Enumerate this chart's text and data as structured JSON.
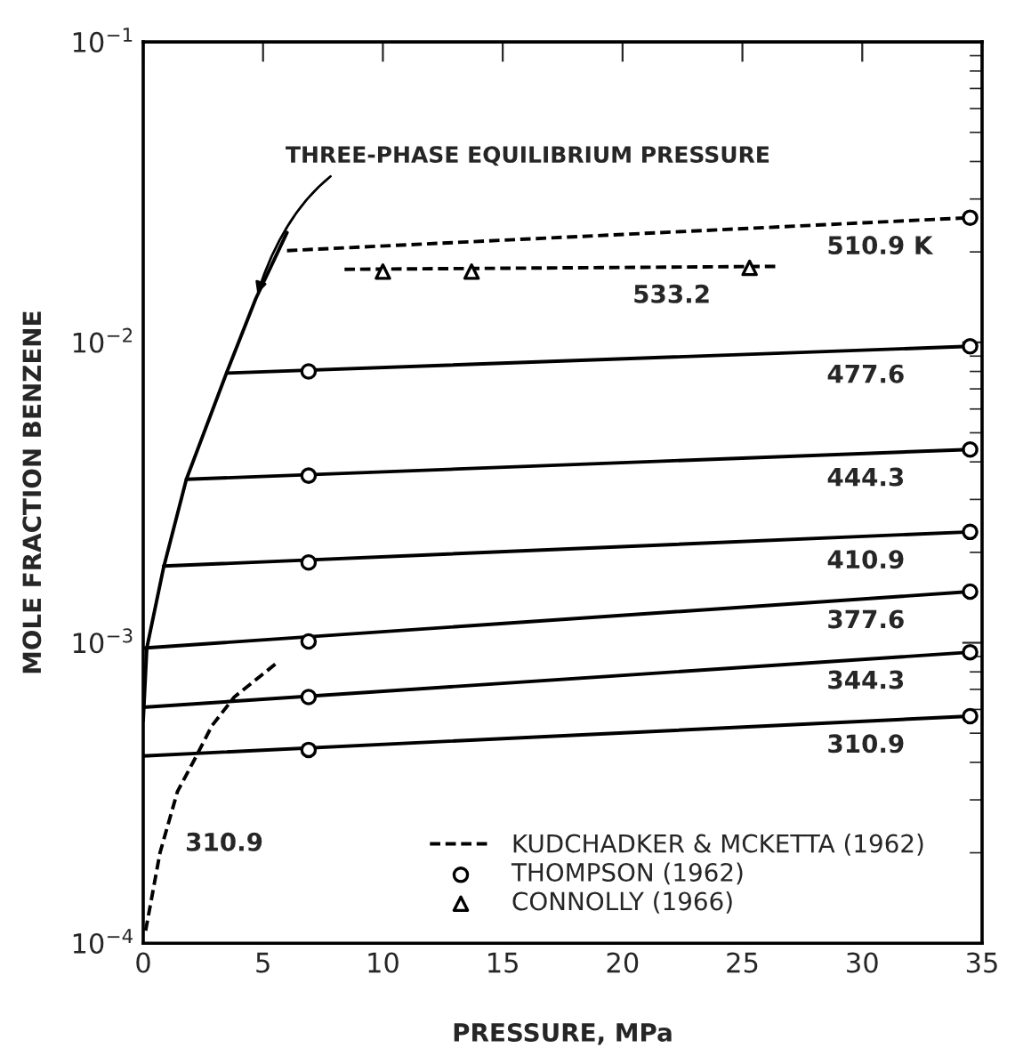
{
  "chart_data": {
    "type": "line",
    "xlabel": "PRESSURE, MPa",
    "ylabel": "MOLE FRACTION BENZENE",
    "log": "y",
    "xlim": [
      0,
      35
    ],
    "xticks": [
      0,
      5,
      10,
      15,
      20,
      25,
      30,
      35
    ],
    "ylim": [
      0.0001,
      0.1
    ],
    "yticks": [
      {
        "value": 0.0001,
        "label": "10$^{−4}$"
      },
      {
        "value": 0.001,
        "label": "10$^{−3}$"
      },
      {
        "value": 0.01,
        "label": "10$^{−2}$"
      },
      {
        "value": 0.1,
        "label": "10$^{−1}$"
      }
    ],
    "grid": false,
    "legend": "bottom right",
    "series": [
      {
        "color": "#000000",
        "line_style": "solid",
        "x": [
          0,
          0.15,
          0.85,
          1.8,
          3.5,
          4.7,
          6.0
        ],
        "values": [
          0.00055,
          0.00096,
          0.00178,
          0.0035,
          0.008,
          0.014,
          0.0232
        ]
      },
      {
        "name": "477.6",
        "color": "#000000",
        "line_style": "solid",
        "x": [
          3.5,
          34.5
        ],
        "values": [
          0.0079,
          0.0097
        ]
      },
      {
        "name": "444.3",
        "color": "#000000",
        "line_style": "solid",
        "x": [
          1.8,
          34.5
        ],
        "values": [
          0.0035,
          0.0044
        ]
      },
      {
        "name": "410.9",
        "color": "#000000",
        "line_style": "solid",
        "x": [
          0.85,
          34.5
        ],
        "values": [
          0.0018,
          0.00234
        ]
      },
      {
        "name": "377.6",
        "color": "#000000",
        "line_style": "solid",
        "x": [
          0,
          34.5
        ],
        "values": [
          0.00096,
          0.00148
        ]
      },
      {
        "name": "344.3",
        "color": "#000000",
        "line_style": "solid",
        "x": [
          0,
          34.5
        ],
        "values": [
          0.00061,
          0.00093
        ]
      },
      {
        "name": "310.9",
        "color": "#000000",
        "line_style": "solid",
        "x": [
          0,
          34.5
        ],
        "values": [
          0.00042,
          0.00057
        ]
      },
      {
        "name": "510.9 K",
        "color": "#000000",
        "line_style": "dashed",
        "x": [
          6.0,
          34.5
        ],
        "values": [
          0.0202,
          0.026
        ]
      },
      {
        "name": "533.2",
        "color": "#000000",
        "line_style": "dashed",
        "x": [
          8.4,
          26.4
        ],
        "values": [
          0.0175,
          0.0179
        ]
      },
      {
        "name": "KUDCHADKER & MCKETTA (1962)",
        "color": "#000000",
        "line_style": "dashed",
        "x": [
          0.1,
          0.7,
          1.43,
          2.15,
          2.87,
          3.8,
          5.6
        ],
        "values": [
          0.00011,
          0.0002,
          0.00032,
          0.00041,
          0.00053,
          0.00066,
          0.00086
        ]
      },
      {
        "type": "scatter",
        "name": "THOMPSON (1962)",
        "color": "#000000",
        "marker": "circle",
        "x": [
          6.9,
          6.9,
          6.9,
          6.9,
          6.9,
          6.9,
          34.5,
          34.5,
          34.5,
          34.5,
          34.5,
          34.5,
          34.5
        ],
        "values": [
          0.008,
          0.0036,
          0.00185,
          0.00101,
          0.00066,
          0.00044,
          0.026,
          0.0097,
          0.0044,
          0.00234,
          0.00148,
          0.00093,
          0.00057
        ]
      },
      {
        "type": "scatter",
        "name": "CONNOLLY (1966)",
        "color": "#000000",
        "marker": "triangle",
        "x": [
          10,
          13.7,
          25.3
        ],
        "values": [
          0.0172,
          0.0172,
          0.0177
        ]
      }
    ],
    "annotations": [
      {
        "text": "THREE-PHASE EQUILIBRIUM PRESSURE",
        "x": 4.7,
        "y": 0.014
      },
      "310.9"
    ]
  }
}
